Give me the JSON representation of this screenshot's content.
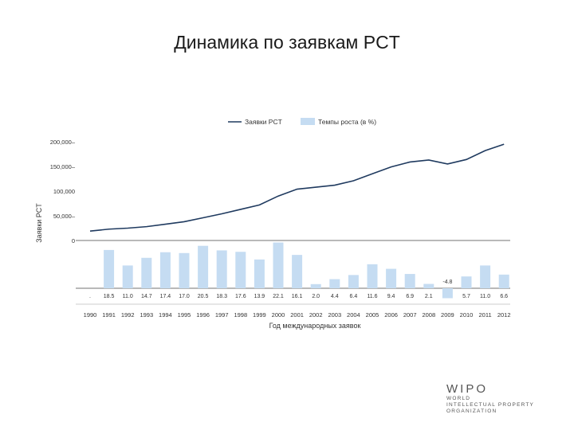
{
  "slide": {
    "title": "Динамика по заявкам PCT"
  },
  "chart_data": {
    "type": "line+bar",
    "categories": [
      "1990",
      "1991",
      "1992",
      "1993",
      "1994",
      "1995",
      "1996",
      "1997",
      "1998",
      "1999",
      "2000",
      "2001",
      "2002",
      "2003",
      "2004",
      "2005",
      "2006",
      "2007",
      "2008",
      "2009",
      "2010",
      "2011",
      "2012"
    ],
    "series": [
      {
        "name": "Заявки PCT",
        "type": "line",
        "color": "#1f3a5f",
        "values": [
          19000,
          23000,
          25000,
          28000,
          33000,
          38000,
          46000,
          54000,
          63000,
          72000,
          90000,
          104000,
          108000,
          112000,
          121000,
          135000,
          149000,
          159000,
          163000,
          155000,
          164000,
          182000,
          195000
        ]
      },
      {
        "name": "Темпы роста (в %)",
        "type": "bar",
        "color": "#c5dcf2",
        "values": [
          null,
          18.5,
          11.0,
          14.7,
          17.4,
          17.0,
          20.5,
          18.3,
          17.6,
          13.9,
          22.1,
          16.1,
          2.0,
          4.4,
          6.4,
          11.6,
          9.4,
          6.9,
          2.1,
          -4.8,
          5.7,
          11.0,
          6.6
        ]
      }
    ],
    "bar_labels": [
      ".",
      "18.5",
      "11.0",
      "14.7",
      "17.4",
      "17.0",
      "20.5",
      "18.3",
      "17.6",
      "13.9",
      "22.1",
      "16.1",
      "2.0",
      "4.4",
      "6.4",
      "11.6",
      "9.4",
      "6.9",
      "2.1",
      "-4.8",
      "5.7",
      "11.0",
      "6.6"
    ],
    "y_ticks": [
      "200,000–",
      "150,000–",
      "100,000",
      "50,000–",
      "0"
    ],
    "y_tick_values": [
      200000,
      150000,
      100000,
      50000,
      0
    ],
    "ylim": [
      0,
      200000
    ],
    "ylabel": "Заявки PCT",
    "xlabel": "Год международных заявок",
    "legend_position": "top-right"
  },
  "logo": {
    "name": "WIPO",
    "lines": [
      "WORLD",
      "INTELLECTUAL PROPERTY",
      "ORGANIZATION"
    ]
  }
}
